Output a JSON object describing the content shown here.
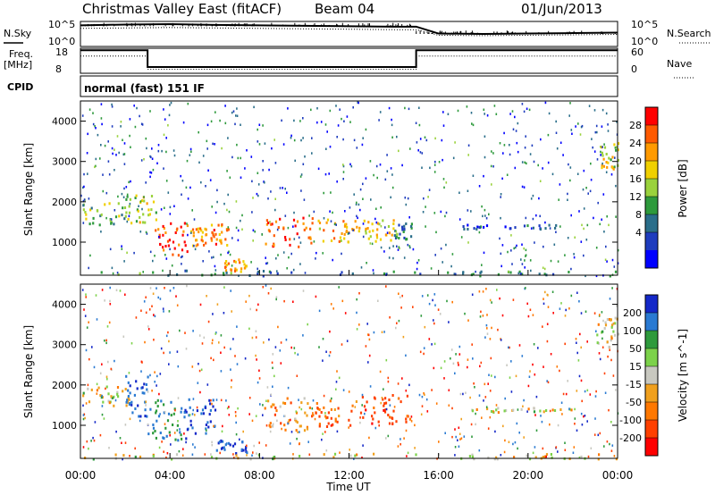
{
  "header": {
    "station": "Christmas Valley East (fitACF)",
    "beam": "Beam 04",
    "date": "01/Jun/2013"
  },
  "meta_panels": {
    "nsky_label": "N.Sky",
    "nsky_ticks": [
      "10^5",
      "10^0"
    ],
    "nsearch_ticks": [
      "10^5",
      "10^0"
    ],
    "nsearch_label": "N.Search",
    "freq_label_1": "Freq.",
    "freq_label_2": "[MHz]",
    "freq_ticks": [
      "18",
      "8"
    ],
    "nave_ticks": [
      "60",
      "0"
    ],
    "nave_label": "Nave",
    "cpid_label": "CPID",
    "cpid_value": "normal (fast) 151 IF"
  },
  "axes": {
    "ylabel": "Slant Range [km]",
    "xlabel": "Time UT",
    "y_ticks": [
      "1000",
      "2000",
      "3000",
      "4000"
    ],
    "x_ticks": [
      "00:00",
      "04:00",
      "08:00",
      "12:00",
      "16:00",
      "20:00",
      "00:00"
    ]
  },
  "colorbars": {
    "power": {
      "label": "Power [dB]",
      "ticks": [
        "28",
        "24",
        "20",
        "16",
        "12",
        "8",
        "4"
      ],
      "colors": [
        "#ff0000",
        "#ff5a00",
        "#ff9a00",
        "#f0d000",
        "#9ad23c",
        "#2e9a3c",
        "#2a6e8a",
        "#1e3cbe",
        "#0000ff"
      ]
    },
    "velocity": {
      "label": "Velocity [m s^-1]",
      "ticks": [
        "200",
        "100",
        "50",
        "15",
        "-15",
        "-50",
        "-100",
        "-200"
      ],
      "colors": [
        "#1428c8",
        "#2a7ad2",
        "#2e9a3c",
        "#7cd24a",
        "#c8c8c0",
        "#f0a01e",
        "#ff7800",
        "#ff4000",
        "#ff0000"
      ]
    }
  },
  "chart_data": [
    {
      "type": "line",
      "title": "N.Sky / N.Search",
      "x_unit": "hours UT",
      "x": [
        0,
        2,
        4,
        6,
        8,
        10,
        12,
        14,
        15,
        16,
        18,
        20,
        22,
        24
      ],
      "series": [
        {
          "name": "N.Sky",
          "values": [
            4.5,
            4.7,
            4.8,
            4.6,
            4.5,
            4.4,
            4.3,
            4.2,
            4.2,
            2.6,
            2.5,
            2.6,
            2.7,
            2.8
          ]
        },
        {
          "name": "N.Search",
          "values": [
            3.8,
            3.9,
            4.0,
            3.9,
            3.8,
            3.7,
            3.6,
            3.5,
            3.5,
            2.2,
            2.1,
            2.2,
            2.3,
            2.4
          ]
        }
      ],
      "ylim": [
        0,
        5
      ]
    },
    {
      "type": "line",
      "title": "Frequency / Nave",
      "x_unit": "hours UT",
      "freq_steps": [
        [
          0,
          17.5
        ],
        [
          3.0,
          17.5
        ],
        [
          3.0,
          10.3
        ],
        [
          15.0,
          10.3
        ],
        [
          15.0,
          17.5
        ],
        [
          24,
          17.5
        ]
      ],
      "nave_steps": [
        [
          0,
          42
        ],
        [
          3.0,
          42
        ],
        [
          3.0,
          8
        ],
        [
          15.0,
          8
        ],
        [
          15.0,
          42
        ],
        [
          24,
          42
        ]
      ],
      "freq_ylim": [
        8,
        18
      ],
      "nave_ylim": [
        0,
        60
      ]
    },
    {
      "type": "heatmap",
      "title": "Power",
      "xlabel": "Time UT",
      "ylabel": "Slant Range [km]",
      "xlim": [
        0,
        24
      ],
      "ylim": [
        180,
        4500
      ],
      "clim": [
        0,
        30
      ],
      "regions": [
        {
          "t0": 0.0,
          "t1": 2.0,
          "r0": 1450,
          "r1": 2000,
          "p": 14
        },
        {
          "t0": 2.0,
          "t1": 3.4,
          "r0": 1500,
          "r1": 2200,
          "p": 16
        },
        {
          "t0": 3.2,
          "t1": 4.8,
          "r0": 700,
          "r1": 1500,
          "p": 26
        },
        {
          "t0": 4.8,
          "t1": 5.6,
          "r0": 900,
          "r1": 1400,
          "p": 22
        },
        {
          "t0": 5.8,
          "t1": 6.6,
          "r0": 950,
          "r1": 1500,
          "p": 23
        },
        {
          "t0": 6.4,
          "t1": 7.4,
          "r0": 300,
          "r1": 650,
          "p": 22
        },
        {
          "t0": 8.2,
          "t1": 10.4,
          "r0": 900,
          "r1": 1650,
          "p": 25
        },
        {
          "t0": 10.6,
          "t1": 12.6,
          "r0": 1000,
          "r1": 1600,
          "p": 21
        },
        {
          "t0": 12.6,
          "t1": 14.0,
          "r0": 1050,
          "r1": 1600,
          "p": 18
        },
        {
          "t0": 14.0,
          "t1": 14.8,
          "r0": 1100,
          "r1": 1500,
          "p": 10
        },
        {
          "t0": 17.0,
          "t1": 21.5,
          "r0": 1350,
          "r1": 1460,
          "p": 6
        },
        {
          "t0": 23.2,
          "t1": 24.0,
          "r0": 2800,
          "r1": 3500,
          "p": 17
        },
        {
          "t0": 0.0,
          "t1": 24.0,
          "r0": 190,
          "r1": 320,
          "p": 9
        }
      ]
    },
    {
      "type": "heatmap",
      "title": "Velocity",
      "xlabel": "Time UT",
      "ylabel": "Slant Range [km]",
      "xlim": [
        0,
        24
      ],
      "ylim": [
        180,
        4500
      ],
      "clim": [
        -250,
        250
      ],
      "regions": [
        {
          "t0": 0.0,
          "t1": 2.2,
          "r0": 1500,
          "r1": 2000,
          "v": 0
        },
        {
          "t0": 2.0,
          "t1": 3.0,
          "r0": 1200,
          "r1": 2300,
          "v": 180
        },
        {
          "t0": 3.0,
          "t1": 4.6,
          "r0": 650,
          "r1": 1650,
          "v": 120
        },
        {
          "t0": 4.6,
          "t1": 6.0,
          "r0": 700,
          "r1": 1700,
          "v": 200
        },
        {
          "t0": 6.0,
          "t1": 7.4,
          "r0": 330,
          "r1": 650,
          "v": 220
        },
        {
          "t0": 8.2,
          "t1": 10.2,
          "r0": 900,
          "r1": 1700,
          "v": -60
        },
        {
          "t0": 10.2,
          "t1": 12.5,
          "r0": 1000,
          "r1": 1650,
          "v": -100
        },
        {
          "t0": 12.5,
          "t1": 14.8,
          "r0": 1050,
          "r1": 1800,
          "v": -150
        },
        {
          "t0": 17.0,
          "t1": 22.0,
          "r0": 1350,
          "r1": 1460,
          "v": 0
        },
        {
          "t0": 23.0,
          "t1": 24.0,
          "r0": 2900,
          "r1": 3700,
          "v": 0
        },
        {
          "t0": 0.0,
          "t1": 24.0,
          "r0": 190,
          "r1": 320,
          "v": 0
        }
      ]
    }
  ]
}
